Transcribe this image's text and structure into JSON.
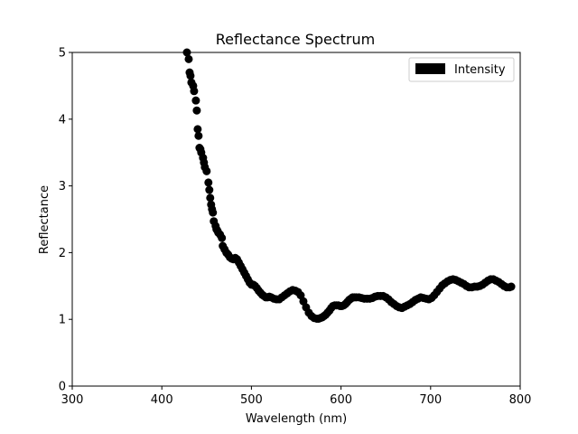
{
  "chart_data": {
    "type": "scatter",
    "title": "Reflectance Spectrum",
    "xlabel": "Wavelength (nm)",
    "ylabel": "Reflectance",
    "xlim": [
      300,
      800
    ],
    "ylim": [
      0,
      5
    ],
    "xticks": [
      "300",
      "400",
      "500",
      "600",
      "700",
      "800"
    ],
    "yticks": [
      "0",
      "1",
      "2",
      "3",
      "4",
      "5"
    ],
    "grid": false,
    "legend": {
      "position": "top-right",
      "entries": [
        "Intensity"
      ]
    },
    "series": [
      {
        "name": "Intensity",
        "color": "#000000",
        "x": [
          428,
          430,
          431,
          432,
          433,
          435,
          436,
          438,
          439,
          440,
          441,
          442,
          443,
          444,
          446,
          447,
          448,
          450,
          452,
          453,
          454,
          455,
          456,
          457,
          458,
          460,
          461,
          462,
          463,
          465,
          467,
          468,
          470,
          472,
          474,
          476,
          478,
          480,
          482,
          484,
          486,
          488,
          490,
          492,
          494,
          496,
          498,
          500,
          502,
          504,
          506,
          508,
          510,
          512,
          514,
          516,
          518,
          520,
          522,
          525,
          528,
          531,
          534,
          537,
          540,
          543,
          546,
          549,
          552,
          555,
          558,
          561,
          564,
          567,
          570,
          573,
          575,
          577,
          579,
          581,
          583,
          585,
          587,
          589,
          591,
          593,
          595,
          597,
          599,
          601,
          603,
          605,
          607,
          609,
          611,
          613,
          615,
          617,
          620,
          623,
          626,
          629,
          632,
          635,
          638,
          641,
          644,
          647,
          650,
          653,
          656,
          659,
          662,
          665,
          668,
          671,
          674,
          677,
          680,
          683,
          686,
          689,
          692,
          695,
          698,
          701,
          704,
          707,
          710,
          713,
          716,
          719,
          722,
          725,
          728,
          731,
          734,
          737,
          740,
          743,
          746,
          749,
          752,
          755,
          758,
          761,
          764,
          767,
          770,
          773,
          776,
          779,
          782,
          785,
          788,
          790
        ],
        "y": [
          5.0,
          4.9,
          4.7,
          4.65,
          4.55,
          4.5,
          4.42,
          4.28,
          4.13,
          3.85,
          3.75,
          3.57,
          3.55,
          3.5,
          3.42,
          3.35,
          3.28,
          3.22,
          3.05,
          2.94,
          2.82,
          2.72,
          2.65,
          2.6,
          2.47,
          2.4,
          2.35,
          2.33,
          2.3,
          2.27,
          2.22,
          2.1,
          2.05,
          2.0,
          1.97,
          1.93,
          1.91,
          1.9,
          1.92,
          1.9,
          1.85,
          1.8,
          1.75,
          1.7,
          1.65,
          1.6,
          1.55,
          1.52,
          1.52,
          1.5,
          1.47,
          1.43,
          1.4,
          1.37,
          1.35,
          1.33,
          1.33,
          1.34,
          1.33,
          1.31,
          1.3,
          1.3,
          1.33,
          1.36,
          1.39,
          1.42,
          1.44,
          1.43,
          1.41,
          1.36,
          1.27,
          1.18,
          1.1,
          1.05,
          1.02,
          1.01,
          1.01,
          1.02,
          1.03,
          1.05,
          1.07,
          1.1,
          1.13,
          1.17,
          1.2,
          1.21,
          1.21,
          1.21,
          1.2,
          1.2,
          1.21,
          1.23,
          1.26,
          1.29,
          1.31,
          1.33,
          1.33,
          1.33,
          1.33,
          1.32,
          1.31,
          1.31,
          1.31,
          1.32,
          1.34,
          1.35,
          1.35,
          1.35,
          1.33,
          1.3,
          1.26,
          1.23,
          1.2,
          1.18,
          1.17,
          1.19,
          1.21,
          1.23,
          1.26,
          1.29,
          1.31,
          1.33,
          1.32,
          1.31,
          1.3,
          1.32,
          1.36,
          1.41,
          1.46,
          1.51,
          1.54,
          1.57,
          1.59,
          1.6,
          1.59,
          1.57,
          1.55,
          1.53,
          1.5,
          1.48,
          1.48,
          1.49,
          1.49,
          1.5,
          1.52,
          1.55,
          1.58,
          1.6,
          1.6,
          1.58,
          1.56,
          1.53,
          1.5,
          1.48,
          1.48,
          1.49
        ]
      }
    ]
  }
}
